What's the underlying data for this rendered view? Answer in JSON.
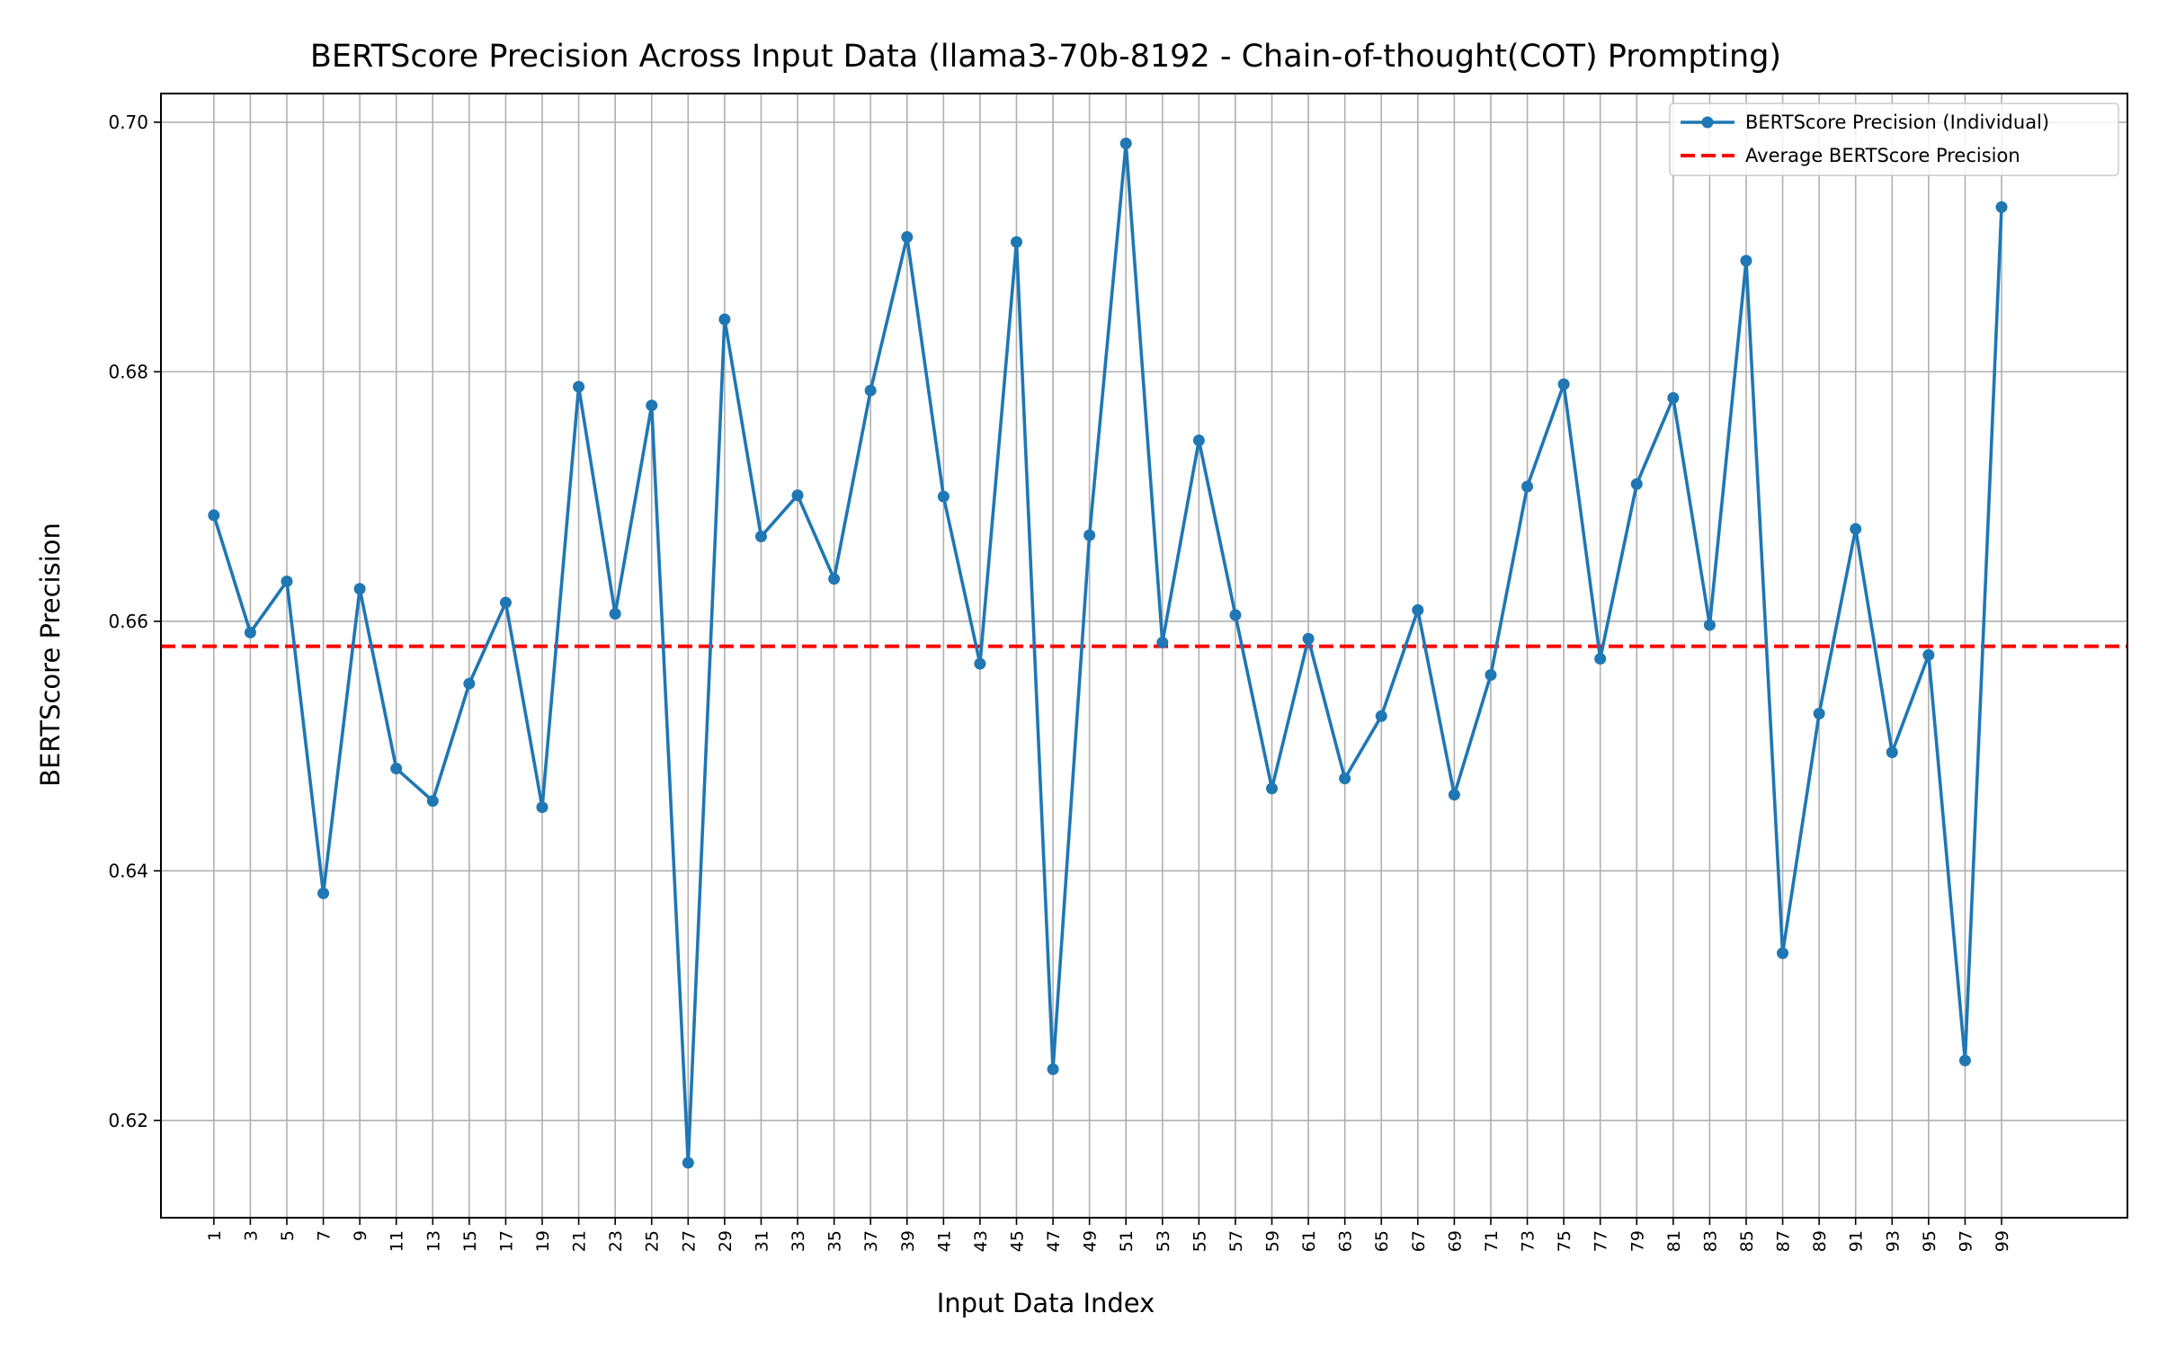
{
  "chart_data": {
    "type": "line",
    "title": "BERTScore Precision Across Input Data (llama3-70b-8192 - Chain-of-thought(COT) Prompting)",
    "xlabel": "Input Data Index",
    "ylabel": "BERTScore Precision",
    "xlim": [
      -1.45,
      52.45
    ],
    "ylim": [
      0.6122,
      0.7023
    ],
    "x_ticks": [
      "1",
      "3",
      "5",
      "7",
      "9",
      "11",
      "13",
      "15",
      "17",
      "19",
      "21",
      "23",
      "25",
      "27",
      "29",
      "31",
      "33",
      "35",
      "37",
      "39",
      "41",
      "43",
      "45",
      "47",
      "49",
      "51",
      "53",
      "55",
      "57",
      "59",
      "61",
      "63",
      "65",
      "67",
      "69",
      "71",
      "73",
      "75",
      "77",
      "79",
      "81",
      "83",
      "85",
      "87",
      "89",
      "91",
      "93",
      "95",
      "97",
      "99"
    ],
    "y_ticks": [
      {
        "value": 0.62,
        "label": "0.62"
      },
      {
        "value": 0.64,
        "label": "0.64"
      },
      {
        "value": 0.66,
        "label": "0.66"
      },
      {
        "value": 0.68,
        "label": "0.68"
      },
      {
        "value": 0.7,
        "label": "0.70"
      }
    ],
    "grid": true,
    "legend_position": "top-right",
    "series": [
      {
        "name": "BERTScore Precision (Individual)",
        "color": "#1f77b4",
        "style": "solid-with-markers",
        "values": [
          0.6685,
          0.6591,
          0.6632,
          0.6382,
          0.6626,
          0.6482,
          0.6456,
          0.655,
          0.6615,
          0.6451,
          0.6788,
          0.6606,
          0.6773,
          0.6166,
          0.6842,
          0.6668,
          0.6701,
          0.6634,
          0.6785,
          0.6908,
          0.67,
          0.6566,
          0.6904,
          0.6241,
          0.6669,
          0.6983,
          0.6583,
          0.6745,
          0.6605,
          0.6466,
          0.6586,
          0.6474,
          0.6524,
          0.6609,
          0.6461,
          0.6557,
          0.6708,
          0.679,
          0.657,
          0.671,
          0.6779,
          0.6597,
          0.6889,
          0.6334,
          0.6526,
          0.6674,
          0.6495,
          0.6573,
          0.6248,
          0.6932
        ]
      }
    ],
    "reference_lines": [
      {
        "name": "Average BERTScore Precision",
        "value": 0.658,
        "color": "#ff0000",
        "style": "dashed"
      }
    ]
  }
}
